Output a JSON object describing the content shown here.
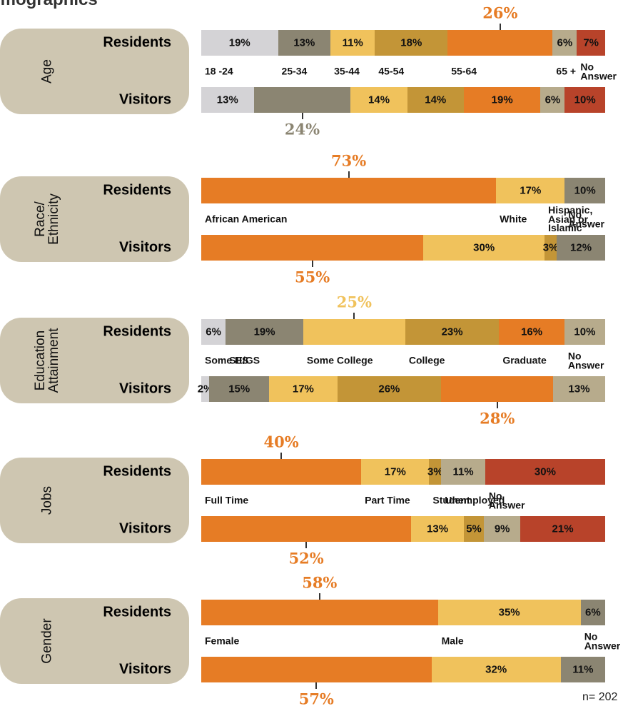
{
  "title": "Demographics",
  "note": "n= 202",
  "chart_data": [
    {
      "type": "stacked_bar",
      "title": "Age",
      "categories": [
        "18 -24",
        "25-34",
        "35-44",
        "45-54",
        "55-64",
        "65 +",
        "No\nAnswer"
      ],
      "colors": [
        "#d4d3d6",
        "#8b8572",
        "#f0c25c",
        "#c39537",
        "#e67c25",
        "#b7ab8c",
        "#b8432a"
      ],
      "series": [
        {
          "name": "Residents",
          "values": [
            19,
            13,
            11,
            18,
            26,
            6,
            7
          ],
          "value_labels": [
            "19%",
            "13%",
            "11%",
            "18%",
            "26%",
            "6%",
            "7%"
          ]
        },
        {
          "name": "Visitors",
          "values": [
            13,
            24,
            14,
            14,
            19,
            6,
            10
          ],
          "value_labels": [
            "13%",
            "24%",
            "14%",
            "14%",
            "19%",
            "6%",
            "10%"
          ]
        }
      ]
    },
    {
      "type": "stacked_bar",
      "title": "Race/\nEthnicity",
      "categories": [
        "African American",
        "White",
        "Hispanic,\nAsian or Islamic",
        "No\nAnswer"
      ],
      "colors": [
        "#e67c25",
        "#f0c25c",
        "#c39537",
        "#8b8572"
      ],
      "series": [
        {
          "name": "Residents",
          "values": [
            73,
            17,
            null,
            10
          ],
          "value_labels": [
            "73%",
            "17%",
            null,
            "10%"
          ]
        },
        {
          "name": "Visitors",
          "values": [
            55,
            30,
            3,
            12
          ],
          "value_labels": [
            "55%",
            "30%",
            "3%",
            "12%"
          ]
        }
      ]
    },
    {
      "type": "stacked_bar",
      "title": "Education\nAttainment",
      "categories": [
        "Some HS",
        "SE/GS",
        "Some College",
        "College",
        "Graduate",
        "No\nAnswer"
      ],
      "colors": [
        "#d4d3d6",
        "#8b8572",
        "#f0c25c",
        "#c39537",
        "#e67c25",
        "#b7ab8c"
      ],
      "series": [
        {
          "name": "Residents",
          "values": [
            6,
            19,
            25,
            23,
            16,
            10
          ],
          "value_labels": [
            "6%",
            "19%",
            "25%",
            "23%",
            "16%",
            "10%"
          ]
        },
        {
          "name": "Visitors",
          "values": [
            2,
            15,
            17,
            26,
            28,
            13
          ],
          "value_labels": [
            "2%",
            "15%",
            "17%",
            "26%",
            "28%",
            "13%"
          ]
        }
      ]
    },
    {
      "type": "stacked_bar",
      "title": "Jobs",
      "categories": [
        "Full Time",
        "Part Time",
        "Student",
        "Unemployed",
        "No\nAnswer"
      ],
      "colors": [
        "#e67c25",
        "#f0c25c",
        "#c39537",
        "#b7ab8c",
        "#b8432a"
      ],
      "series": [
        {
          "name": "Residents",
          "values": [
            40,
            17,
            3,
            11,
            30
          ],
          "value_labels": [
            "40%",
            "17%",
            "3%",
            "11%",
            "30%"
          ]
        },
        {
          "name": "Visitors",
          "values": [
            52,
            13,
            5,
            9,
            21
          ],
          "value_labels": [
            "52%",
            "13%",
            "5%",
            "9%",
            "21%"
          ]
        }
      ]
    },
    {
      "type": "stacked_bar",
      "title": "Gender",
      "categories": [
        "Female",
        "Male",
        "No\nAnswer"
      ],
      "colors": [
        "#e67c25",
        "#f0c25c",
        "#8b8572"
      ],
      "series": [
        {
          "name": "Residents",
          "values": [
            58,
            35,
            6
          ],
          "value_labels": [
            "58%",
            "35%",
            "6%"
          ]
        },
        {
          "name": "Visitors",
          "values": [
            57,
            32,
            11
          ],
          "value_labels": [
            "57%",
            "32%",
            "11%"
          ]
        }
      ]
    }
  ]
}
